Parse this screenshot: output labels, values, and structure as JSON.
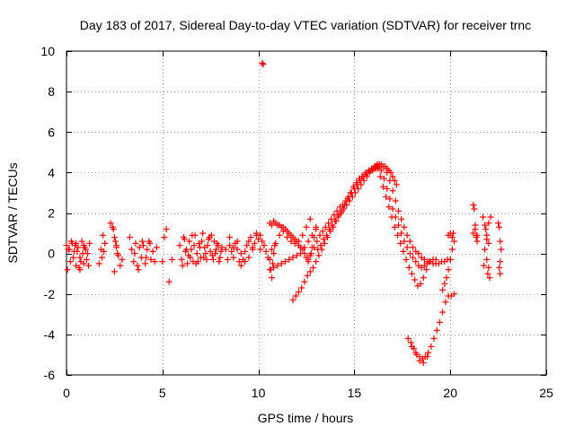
{
  "chart_data": {
    "type": "scatter",
    "title": "Day 183 of 2017, Sidereal Day-to-day VTEC variation (SDTVAR) for receiver trnc",
    "xlabel": "GPS time / hours",
    "ylabel": "SDTVAR / TECUs",
    "xlim": [
      0,
      25
    ],
    "ylim": [
      -6,
      10
    ],
    "xticks": [
      0,
      5,
      10,
      15,
      20,
      25
    ],
    "yticks": [
      -6,
      -4,
      -2,
      0,
      2,
      4,
      6,
      8,
      10
    ],
    "grid": true,
    "marker": "+",
    "color": "#ff0000",
    "series": [
      {
        "name": "SDTVAR",
        "x": [
          0.0,
          0.1,
          0.2,
          0.3,
          0.4,
          0.5,
          0.6,
          0.7,
          0.8,
          0.9,
          1.0,
          1.1,
          1.2,
          0.05,
          0.25,
          0.45,
          0.65,
          0.85,
          1.05,
          0.15,
          0.35,
          0.55,
          0.75,
          0.95,
          1.15,
          0.5,
          0.7,
          0.9,
          1.7,
          1.8,
          1.9,
          2.0,
          1.85,
          1.95,
          2.3,
          2.4,
          2.5,
          2.6,
          2.7,
          2.8,
          2.9,
          2.45,
          2.55,
          2.65,
          2.5,
          2.6,
          3.3,
          3.4,
          3.5,
          3.6,
          3.7,
          3.8,
          3.9,
          4.0,
          4.1,
          4.2,
          4.3,
          4.4,
          4.5,
          4.6,
          4.7,
          3.55,
          3.75,
          3.95,
          4.15,
          4.35,
          5.0,
          5.1,
          5.2,
          5.35,
          5.5,
          5.9,
          6.0,
          6.1,
          6.2,
          6.3,
          6.4,
          6.5,
          6.6,
          6.7,
          6.8,
          6.9,
          7.0,
          7.1,
          7.2,
          7.3,
          7.4,
          7.5,
          7.6,
          7.7,
          7.8,
          7.9,
          8.0,
          8.1,
          6.05,
          6.25,
          6.45,
          6.65,
          6.85,
          7.05,
          7.25,
          7.45,
          7.65,
          7.85,
          8.05,
          6.15,
          6.35,
          6.55,
          6.75,
          6.95,
          7.15,
          7.35,
          7.55,
          7.75,
          7.95,
          8.3,
          8.4,
          8.5,
          8.6,
          8.7,
          8.8,
          8.9,
          9.0,
          9.1,
          9.2,
          9.3,
          9.4,
          9.5,
          9.6,
          9.7,
          9.8,
          9.9,
          10.0,
          10.1,
          10.2,
          10.3,
          10.4,
          10.5,
          8.5,
          8.7,
          8.9,
          9.1,
          9.3,
          9.5,
          9.7,
          9.9,
          10.1,
          10.2,
          10.25,
          10.6,
          10.65,
          10.7,
          10.75,
          10.8,
          10.85,
          10.6,
          10.7,
          10.8,
          10.9,
          11.0,
          11.1,
          11.2,
          11.3,
          11.4,
          11.5,
          11.6,
          11.7,
          11.8,
          11.9,
          12.0,
          12.1,
          12.2,
          12.3,
          12.4,
          12.5,
          12.6,
          12.7,
          12.8,
          12.9,
          13.0,
          10.6,
          10.8,
          11.0,
          11.2,
          11.4,
          11.6,
          11.8,
          12.0,
          12.2,
          12.4,
          12.6,
          12.8,
          13.0,
          10.7,
          10.9,
          11.1,
          11.3,
          11.5,
          11.7,
          11.9,
          12.1,
          12.3,
          12.5,
          12.7,
          11.8,
          11.95,
          12.1,
          12.25,
          12.4,
          12.55,
          12.7,
          12.85,
          13.0,
          13.15,
          13.3,
          13.45,
          13.6,
          13.75,
          13.9,
          14.05,
          14.2,
          14.35,
          14.5,
          14.65,
          14.8,
          14.95,
          15.1,
          15.25,
          15.4,
          15.55,
          15.7,
          15.85,
          16.0,
          16.15,
          16.3,
          12.6,
          12.75,
          12.9,
          13.05,
          13.2,
          13.35,
          13.5,
          13.65,
          13.8,
          13.95,
          14.1,
          14.25,
          14.4,
          14.55,
          14.7,
          14.85,
          15.0,
          15.15,
          15.3,
          15.45,
          15.6,
          15.75,
          15.9,
          16.05,
          16.2,
          13.1,
          13.25,
          13.4,
          13.55,
          13.7,
          13.85,
          14.0,
          14.15,
          14.3,
          14.45,
          14.6,
          14.75,
          14.9,
          15.05,
          15.2,
          15.35,
          15.5,
          15.65,
          15.8,
          15.95,
          16.1,
          16.25,
          16.4,
          16.0,
          16.1,
          16.2,
          16.3,
          16.4,
          16.5,
          16.6,
          16.7,
          16.8,
          16.9,
          17.0,
          17.1,
          17.2,
          16.2,
          16.35,
          16.5,
          16.65,
          16.8,
          16.95,
          17.1,
          17.25,
          17.4,
          17.55,
          17.7,
          17.85,
          18.0,
          18.15,
          18.3,
          18.45,
          18.6,
          18.75,
          18.9,
          16.4,
          16.55,
          16.7,
          16.85,
          17.0,
          17.15,
          17.3,
          17.45,
          17.6,
          17.75,
          17.9,
          18.05,
          18.2,
          18.35,
          18.5,
          18.65,
          18.8,
          18.95,
          19.1,
          19.25,
          16.7,
          16.85,
          17.0,
          17.15,
          17.3,
          17.45,
          17.6,
          17.75,
          17.9,
          18.05,
          18.2,
          18.35,
          18.5,
          18.65,
          18.8,
          18.95,
          19.1,
          19.25,
          19.4,
          19.55,
          19.7,
          19.85,
          20.0,
          17.8,
          17.95,
          18.1,
          18.25,
          18.4,
          18.55,
          18.7,
          18.85,
          19.0,
          19.15,
          19.3,
          19.45,
          19.6,
          19.75,
          19.9,
          20.05,
          20.2,
          18.0,
          18.2,
          18.4,
          18.6,
          18.8,
          19.6,
          19.7,
          19.8,
          19.9,
          20.0,
          20.1,
          20.2,
          19.9,
          20.0,
          20.1,
          20.15,
          21.2,
          21.25,
          21.3,
          21.35,
          21.4,
          21.2,
          21.3,
          21.4,
          21.7,
          21.8,
          21.9,
          22.0,
          22.1,
          21.8,
          21.9,
          22.0,
          21.75,
          21.95,
          22.05,
          21.9,
          22.0,
          21.85,
          22.5,
          22.55,
          22.6,
          22.65,
          22.6,
          22.55,
          22.6
        ],
        "y": [
          0.4,
          0.2,
          -0.4,
          0.5,
          0.1,
          -0.6,
          0.3,
          -0.2,
          0.6,
          -0.5,
          0.2,
          0.0,
          0.5,
          -0.8,
          0.6,
          0.4,
          -0.7,
          0.0,
          -0.3,
          0.2,
          -0.2,
          0.1,
          -0.4,
          0.3,
          -0.6,
          0.5,
          -0.8,
          0.4,
          -0.5,
          0.2,
          0.9,
          0.5,
          -0.2,
          0.1,
          1.5,
          1.3,
          0.8,
          0.3,
          -0.1,
          -0.6,
          -0.3,
          1.2,
          0.6,
          0.0,
          -0.9,
          0.4,
          0.8,
          0.2,
          -0.4,
          0.5,
          -0.6,
          0.3,
          -0.2,
          0.4,
          -0.5,
          0.2,
          0.6,
          -0.3,
          0.1,
          -0.4,
          0.3,
          0.0,
          -0.8,
          0.6,
          -0.2,
          0.5,
          -0.4,
          0.8,
          1.2,
          -1.4,
          -0.3,
          0.4,
          -0.3,
          0.8,
          0.1,
          -0.5,
          0.6,
          0.2,
          -0.4,
          0.9,
          0.0,
          0.5,
          -0.2,
          1.0,
          0.3,
          -0.3,
          0.7,
          0.1,
          -0.1,
          0.6,
          0.2,
          0.4,
          -0.2,
          0.3,
          -0.6,
          0.2,
          -0.2,
          0.4,
          -0.4,
          0.6,
          0.0,
          0.8,
          -0.3,
          0.5,
          0.1,
          0.7,
          -0.1,
          0.9,
          -0.5,
          0.3,
          -0.2,
          0.4,
          0.9,
          0.0,
          -0.4,
          0.2,
          -0.3,
          0.4,
          0.1,
          -0.2,
          0.5,
          0.2,
          -0.4,
          -0.6,
          -0.3,
          0.1,
          0.4,
          0.6,
          0.8,
          0.3,
          0.5,
          0.9,
          0.7,
          0.2,
          0.6,
          0.4,
          0.1,
          -0.2,
          0.8,
          0.3,
          0.6,
          0.0,
          -0.4,
          -0.2,
          0.2,
          1.0,
          0.9,
          9.4,
          9.35,
          -0.3,
          -0.8,
          -1.2,
          -0.5,
          0.0,
          0.4,
          1.5,
          1.4,
          1.6,
          1.5,
          1.4,
          1.4,
          1.3,
          1.3,
          1.2,
          1.1,
          1.0,
          0.9,
          0.8,
          0.7,
          0.6,
          0.4,
          0.3,
          0.2,
          0.0,
          -0.2,
          -0.4,
          -0.1,
          0.3,
          0.8,
          1.2,
          -0.8,
          -0.7,
          -0.6,
          -0.5,
          -0.4,
          -0.3,
          -0.2,
          -0.1,
          0.0,
          0.3,
          0.6,
          0.9,
          1.3,
          0.2,
          0.5,
          0.9,
          1.1,
          0.8,
          0.6,
          0.5,
          0.6,
          0.9,
          1.3,
          1.7,
          -2.3,
          -2.1,
          -1.9,
          -1.7,
          -1.4,
          -1.1,
          -0.9,
          -0.7,
          -0.4,
          -0.1,
          0.2,
          0.5,
          0.8,
          1.1,
          1.3,
          1.6,
          1.9,
          2.1,
          2.4,
          2.7,
          3.0,
          3.3,
          3.5,
          3.7,
          3.8,
          3.9,
          4.0,
          4.1,
          4.2,
          4.3,
          4.3,
          -0.3,
          0.0,
          0.3,
          0.6,
          0.9,
          1.1,
          1.3,
          1.5,
          1.7,
          1.9,
          2.1,
          2.3,
          2.4,
          2.6,
          2.8,
          3.0,
          3.2,
          3.4,
          3.6,
          3.8,
          4.0,
          4.1,
          4.2,
          4.3,
          4.4,
          0.2,
          0.4,
          0.7,
          0.9,
          1.2,
          1.4,
          1.6,
          1.8,
          2.0,
          2.2,
          2.4,
          2.6,
          2.8,
          3.0,
          3.2,
          3.4,
          3.6,
          3.8,
          4.0,
          4.1,
          4.2,
          4.3,
          4.3,
          4.2,
          4.3,
          4.4,
          4.4,
          4.4,
          4.3,
          4.3,
          4.2,
          4.1,
          4.0,
          3.8,
          3.6,
          3.4,
          4.2,
          3.8,
          3.3,
          2.8,
          2.3,
          1.8,
          1.3,
          0.9,
          0.5,
          0.1,
          -0.3,
          -0.7,
          -1.0,
          -1.3,
          -1.6,
          -1.5,
          -1.2,
          -0.8,
          -0.4,
          4.1,
          3.7,
          3.2,
          2.7,
          2.2,
          1.8,
          1.4,
          1.0,
          0.6,
          0.3,
          0.0,
          -0.2,
          -0.4,
          -0.6,
          -0.7,
          -0.6,
          -0.5,
          -0.4,
          -0.3,
          -0.3,
          4.0,
          3.6,
          3.1,
          2.6,
          2.1,
          1.7,
          1.3,
          0.9,
          0.6,
          0.3,
          0.1,
          0.0,
          -0.2,
          -0.3,
          -0.4,
          -0.4,
          -0.5,
          -0.5,
          -0.5,
          -0.4,
          -0.4,
          -0.3,
          -0.3,
          -4.2,
          -4.4,
          -4.7,
          -5.0,
          -5.1,
          -5.2,
          -5.1,
          -4.9,
          -4.6,
          -4.2,
          -3.8,
          -3.4,
          -2.9,
          -2.4,
          -2.1,
          -2.1,
          -2.0,
          -4.6,
          -4.9,
          -5.3,
          -5.4,
          -5.1,
          -1.8,
          -1.5,
          -1.2,
          -0.8,
          -0.3,
          0.2,
          0.6,
          0.9,
          1.0,
          0.8,
          1.0,
          2.4,
          2.2,
          1.2,
          0.8,
          0.6,
          1.0,
          1.4,
          0.9,
          1.8,
          1.4,
          0.9,
          0.5,
          1.8,
          0.2,
          -0.3,
          -0.7,
          -0.6,
          -1.0,
          -1.2,
          0.7,
          1.5,
          1.2,
          1.5,
          1.3,
          0.6,
          0.2,
          -0.4,
          -0.7,
          -1.0
        ]
      }
    ]
  }
}
